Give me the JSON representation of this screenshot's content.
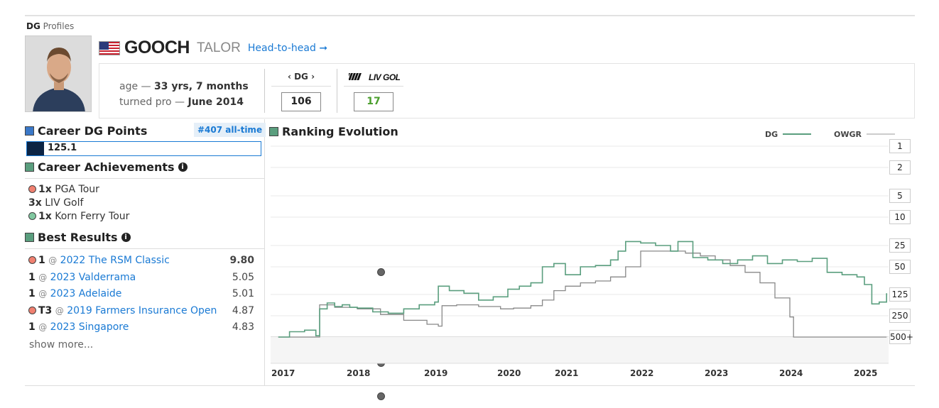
{
  "brand": {
    "strong": "DG",
    "rest": "Profiles"
  },
  "player": {
    "last_name": "GOOCH",
    "first_name": "TALOR",
    "h2h_label": "Head-to-head ➞"
  },
  "bio": {
    "age_label": "age — ",
    "age_value": "33 yrs, 7 months",
    "turnedpro_label": "turned pro — ",
    "turnedpro_value": "June 2014"
  },
  "rankings": {
    "dg_header": "‹ DG ›",
    "dg_value": "106",
    "liv_header": "LIV GOLF",
    "liv_value": "17"
  },
  "career_points": {
    "title": "Career DG Points",
    "badge": "#407 all-time",
    "value": "125.1",
    "fill_fraction": 0.07
  },
  "achievements": {
    "title": "Career Achievements",
    "items": [
      {
        "count": "1x",
        "tour": "PGA Tour",
        "tour_key": "pga"
      },
      {
        "count": "3x",
        "tour": "LIV Golf",
        "tour_key": "liv"
      },
      {
        "count": "1x",
        "tour": "Korn Ferry Tour",
        "tour_key": "kft"
      }
    ]
  },
  "best_results": {
    "title": "Best Results",
    "items": [
      {
        "finish": "1",
        "event": "2022 The RSM Classic",
        "score": "9.80",
        "tour_key": "pga",
        "bold_score": true
      },
      {
        "finish": "1",
        "event": "2023 Valderrama",
        "score": "5.05",
        "tour_key": "liv",
        "bold_score": false
      },
      {
        "finish": "1",
        "event": "2023 Adelaide",
        "score": "5.01",
        "tour_key": "liv",
        "bold_score": false
      },
      {
        "finish": "T3",
        "event": "2019 Farmers Insurance Open",
        "score": "4.87",
        "tour_key": "pga",
        "bold_score": false
      },
      {
        "finish": "1",
        "event": "2023 Singapore",
        "score": "4.83",
        "tour_key": "liv",
        "bold_score": false
      }
    ],
    "at": "@",
    "show_more": "show more..."
  },
  "colors": {
    "dg": "#5a9e7e",
    "owgr": "#888888",
    "pga": "#f08070",
    "liv": "#666666",
    "kft": "#80c8a0",
    "link": "#1a7ad4"
  },
  "chart_data": {
    "type": "line",
    "title": "Ranking Evolution",
    "y_scale": "log",
    "y_reversed": true,
    "y_ticks": [
      "1",
      "2",
      "5",
      "10",
      "25",
      "50",
      "125",
      "250",
      "500+"
    ],
    "x_ticks": [
      "2017",
      "2018",
      "2019",
      "2020",
      "2021",
      "2022",
      "2023",
      "2024",
      "2025"
    ],
    "legend": [
      "DG",
      "OWGR"
    ],
    "legend_position": "top-right",
    "series": [
      {
        "name": "DG",
        "x": [
          2016.95,
          2017.1,
          2017.3,
          2017.45,
          2017.5,
          2017.6,
          2017.7,
          2017.8,
          2017.9,
          2018.0,
          2018.2,
          2018.4,
          2018.6,
          2018.8,
          2019.0,
          2019.05,
          2019.2,
          2019.4,
          2019.6,
          2019.8,
          2020.0,
          2020.2,
          2020.4,
          2020.6,
          2020.8,
          2021.0,
          2021.2,
          2021.4,
          2021.6,
          2021.7,
          2021.8,
          2022.0,
          2022.2,
          2022.4,
          2022.5,
          2022.7,
          2022.9,
          2023.1,
          2023.3,
          2023.5,
          2023.7,
          2023.9,
          2024.1,
          2024.3,
          2024.5,
          2024.7,
          2024.9,
          2025.0,
          2025.1,
          2025.2,
          2025.3
        ],
        "y": [
          500,
          420,
          400,
          480,
          200,
          165,
          185,
          175,
          190,
          195,
          220,
          230,
          200,
          175,
          160,
          95,
          110,
          120,
          150,
          135,
          105,
          95,
          85,
          50,
          45,
          65,
          50,
          48,
          40,
          30,
          22,
          23,
          25,
          30,
          22,
          37,
          40,
          45,
          40,
          35,
          45,
          40,
          42,
          38,
          60,
          65,
          70,
          90,
          170,
          160,
          120
        ]
      },
      {
        "name": "OWGR",
        "x": [
          2016.95,
          2017.1,
          2017.3,
          2017.45,
          2017.5,
          2017.7,
          2018.0,
          2018.3,
          2018.6,
          2018.9,
          2019.05,
          2019.1,
          2019.3,
          2019.6,
          2019.9,
          2020.1,
          2020.4,
          2020.6,
          2020.8,
          2021.0,
          2021.2,
          2021.4,
          2021.6,
          2021.8,
          2022.0,
          2022.2,
          2022.4,
          2022.6,
          2022.8,
          2023.0,
          2023.2,
          2023.4,
          2023.6,
          2023.8,
          2024.0,
          2024.05,
          2024.5,
          2025.0,
          2025.3
        ],
        "y": [
          500,
          500,
          500,
          500,
          175,
          190,
          200,
          240,
          290,
          330,
          350,
          180,
          175,
          185,
          200,
          195,
          180,
          150,
          110,
          95,
          85,
          80,
          70,
          50,
          30,
          30,
          30,
          32,
          35,
          40,
          48,
          60,
          85,
          140,
          260,
          500,
          500,
          500,
          500
        ]
      }
    ]
  }
}
